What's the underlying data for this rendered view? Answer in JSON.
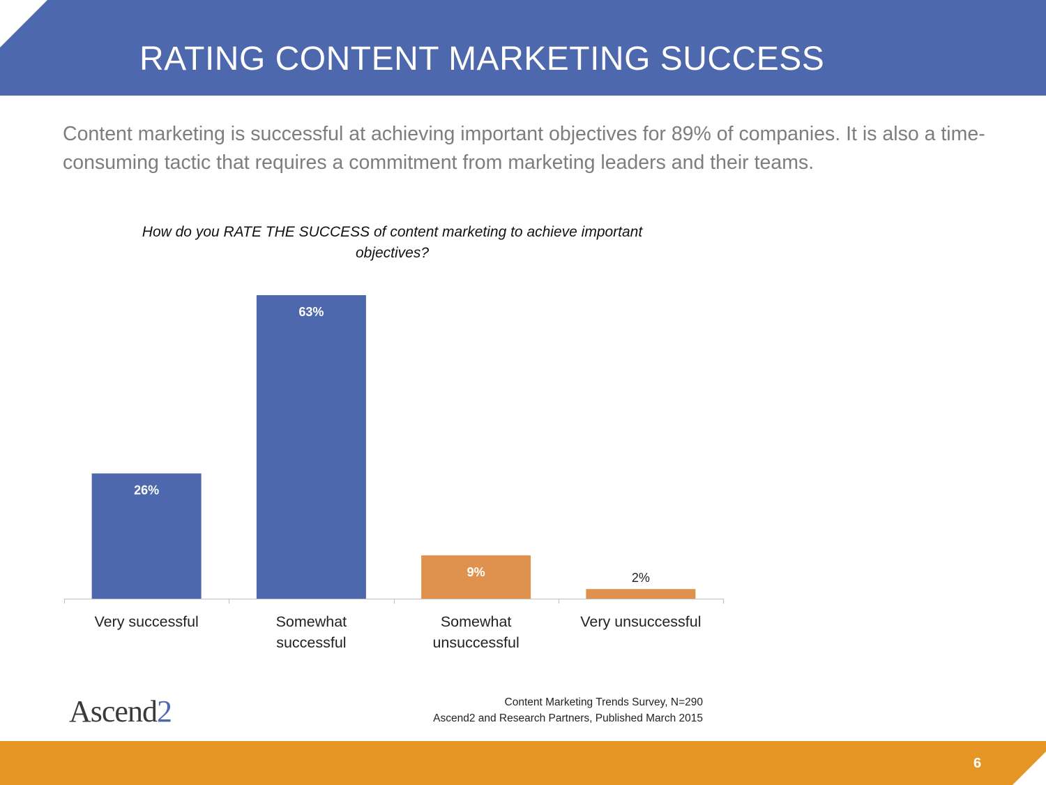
{
  "slide": {
    "title": "RATING CONTENT MARKETING SUCCESS",
    "subtitle": "Content marketing is successful at achieving important objectives for 89% of companies. It is also a time-consuming tactic that requires a commitment from marketing leaders and their teams.",
    "page_number": "6"
  },
  "colors": {
    "header": "#4e68ad",
    "footer": "#e69624",
    "bar_positive": "#4e68ad",
    "bar_negative": "#de924d"
  },
  "chart_data": {
    "type": "bar",
    "title": "How do you RATE THE SUCCESS of content marketing to achieve important objectives?",
    "categories": [
      "Very successful",
      "Somewhat successful",
      "Somewhat unsuccessful",
      "Very unsuccessful"
    ],
    "values": [
      26,
      63,
      9,
      2
    ],
    "value_labels": [
      "26%",
      "63%",
      "9%",
      "2%"
    ],
    "bar_colors": [
      "#4e68ad",
      "#4e68ad",
      "#de924d",
      "#de924d"
    ],
    "ylim": [
      0,
      63
    ],
    "grid": false,
    "legend": "none"
  },
  "footer": {
    "logo_text": "Ascend",
    "logo_suffix": "2",
    "source_line1": "Content Marketing Trends Survey, N=290",
    "source_line2": "Ascend2 and Research Partners, Published March 2015"
  }
}
